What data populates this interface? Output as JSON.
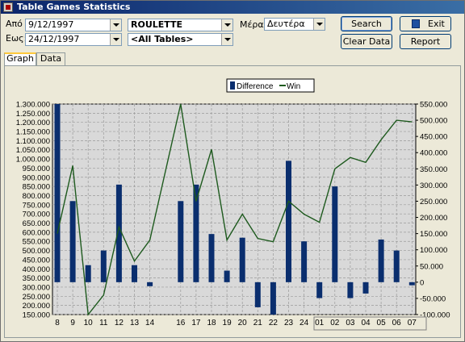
{
  "window": {
    "title": "Table Games Statistics"
  },
  "filters": {
    "from_label": "Από :",
    "from_value": "9/12/1997",
    "to_label": "Εως:",
    "to_value": "24/12/1997",
    "game_value": "ROULETTE",
    "tables_value": "<All Tables>",
    "day_label": "Μέρα:",
    "day_value": "Δευτέρα"
  },
  "buttons": {
    "search": "Search",
    "exit": "Exit",
    "clear": "Clear Data",
    "report": "Report"
  },
  "tabs": [
    {
      "label": "Graph",
      "active": true
    },
    {
      "label": "Data",
      "active": false
    }
  ],
  "chart_data": {
    "type": "bar",
    "legend": [
      "Difference",
      "Win"
    ],
    "legend_position": "top-center",
    "grid": true,
    "colors": {
      "bar": "#0a2e6e",
      "line": "#1e5a1e"
    },
    "left_axis": {
      "ticks": [
        "1.300.000",
        "1.250.000",
        "1.200.000",
        "1.150.000",
        "1.100.000",
        "1.050.000",
        "1.000.000",
        "950.000",
        "900.000",
        "850.000",
        "800.000",
        "750.000",
        "700.000",
        "650.000",
        "600.000",
        "550.000",
        "500.000",
        "450.000",
        "400.000",
        "350.000",
        "300.000",
        "250.000",
        "200.000",
        "150.000"
      ],
      "ylim": [
        150000,
        1300000
      ]
    },
    "right_axis": {
      "ticks": [
        "550.000",
        "500.000",
        "450.000",
        "400.000",
        "350.000",
        "300.000",
        "250.000",
        "200.000",
        "150.000",
        "100.000",
        "50.000",
        "0",
        "-50.000",
        "-100.000"
      ],
      "ylim": [
        -100000,
        550000
      ]
    },
    "categories": [
      "8",
      "9",
      "10",
      "11",
      "12",
      "13",
      "14",
      "16",
      "17",
      "18",
      "19",
      "20",
      "21",
      "22",
      "23",
      "24",
      "01",
      "02",
      "03",
      "04",
      "05",
      "06",
      "07"
    ],
    "series": [
      {
        "name": "Difference",
        "values": [
          1300000,
          770000,
          420000,
          500000,
          860000,
          420000,
          305000,
          770000,
          860000,
          590000,
          390000,
          570000,
          190000,
          140000,
          990000,
          550000,
          240000,
          850000,
          240000,
          265000,
          560000,
          500000,
          310000
        ]
      },
      {
        "name": "Win",
        "values": [
          150000,
          360000,
          -100000,
          -40000,
          170000,
          65000,
          130000,
          550000,
          250000,
          410000,
          130000,
          210000,
          135000,
          125000,
          250000,
          210000,
          185000,
          350000,
          385000,
          370000,
          440000,
          500000,
          495000
        ]
      }
    ]
  }
}
